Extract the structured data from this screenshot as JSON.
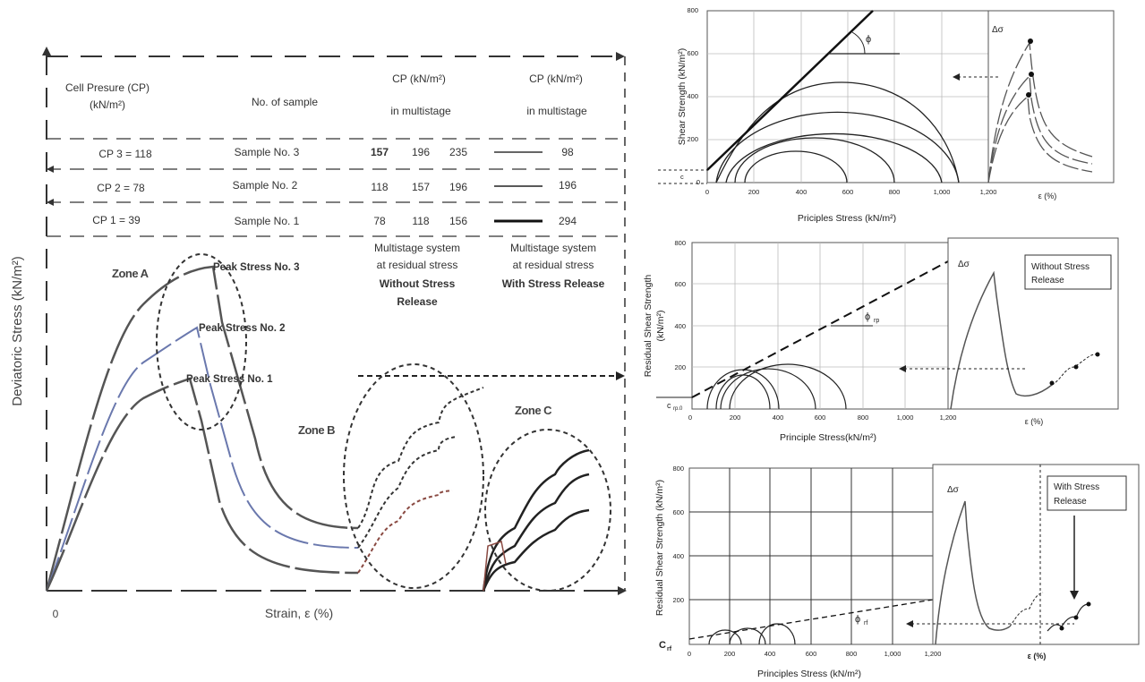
{
  "main": {
    "y_axis": "Deviatoric Stress (kN/m²)",
    "x_axis": "Strain, ε (%)",
    "origin": "0",
    "table": {
      "header_cp": "Cell Presure (CP)",
      "header_cp_unit": "(kN/m²)",
      "header_sample": "No. of sample",
      "header_multi_a": "CP (kN/m²)",
      "header_multi_a_sub": "in multistage",
      "header_multi_b": "CP (kN/m²)",
      "header_multi_b_sub": "in multistage",
      "rows": [
        {
          "cp": "CP 3 = 118",
          "sample": "Sample No. 3",
          "v1": "157",
          "v2": "196",
          "v3": "235",
          "v4": "98"
        },
        {
          "cp": "CP 2 = 78",
          "sample": "Sample No. 2",
          "v1": "118",
          "v2": "157",
          "v3": "196",
          "v4": "196"
        },
        {
          "cp": "CP 1 = 39",
          "sample": "Sample No. 1",
          "v1": "78",
          "v2": "118",
          "v3": "156",
          "v4": "294"
        }
      ],
      "foot_a_1": "Multistage system",
      "foot_a_2": "at residual stress",
      "foot_a_3": "Without Stress",
      "foot_a_4": "Release",
      "foot_b_1": "Multistage system",
      "foot_b_2": "at residual stress",
      "foot_b_3": "With Stress Release"
    },
    "zone_a": "Zone A",
    "zone_b": "Zone B",
    "zone_c": "Zone C",
    "peak3": "Peak Stress No. 3",
    "peak2": "Peak Stress No. 2",
    "peak1": "Peak Stress No. 1"
  },
  "chart1": {
    "ylabel": "Shear Strength (kN/m²)",
    "xlabel": "Priciples Stress (kN/m²)",
    "phi": "ϕ",
    "c": "c",
    "inset_label": "Δσ",
    "inset_x": "ε (%)"
  },
  "chart2": {
    "ylabel_1": "Residual Shear Strength",
    "ylabel_2": "(kN/m²)",
    "xlabel": "Principle Stress(kN/m²)",
    "phi_main": "ϕ",
    "phi_sub": "rp",
    "c_main": "c",
    "c_sub": "rp.0",
    "inset_label": "Δσ",
    "inset_x": "ε (%)",
    "box_1": "Without Stress",
    "box_2": "Release"
  },
  "chart3": {
    "ylabel": "Residual Shear Strength (kN/m²)",
    "xlabel": "Principles Stress (kN/m²)",
    "phi_main": "ϕ",
    "phi_sub": "rf",
    "c_main": "C",
    "c_sub": "rf",
    "inset_label": "Δσ",
    "inset_x": "ε (%)",
    "box_1": "With Stress",
    "box_2": "Release"
  },
  "ticks": {
    "c1_y": [
      "800",
      "600",
      "400",
      "200",
      "0"
    ],
    "c1_x": [
      "0",
      "200",
      "400",
      "600",
      "800",
      "1,000",
      "1,200"
    ],
    "c2_y": [
      "800",
      "600",
      "400",
      "200",
      "0"
    ],
    "c2_x": [
      "0",
      "200",
      "400",
      "600",
      "800",
      "1,000",
      "1,200"
    ],
    "c3_y": [
      "800",
      "600",
      "400",
      "200",
      "0"
    ],
    "c3_x": [
      "0",
      "200",
      "400",
      "600",
      "800",
      "1,000",
      "1,200"
    ]
  },
  "colors": {
    "axis": "#333333",
    "curve": "#555555",
    "curve_blue": "#6a78ad",
    "curve_red": "#8a4a42"
  }
}
